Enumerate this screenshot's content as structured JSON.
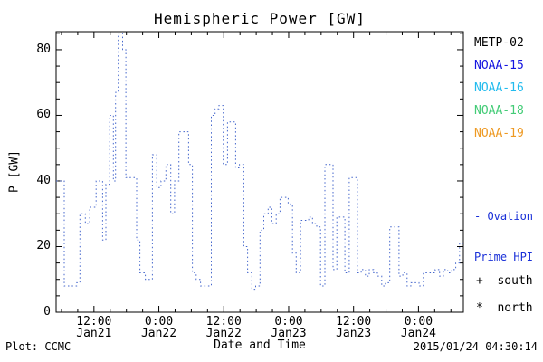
{
  "title": "Hemispheric Power [GW]",
  "axes": {
    "ylabel": "P [GW]",
    "xlabel": "Date and Time"
  },
  "footer": {
    "left": "Plot: CCMC",
    "right": "2015/01/24 04:30:14"
  },
  "legend": {
    "satellites": [
      {
        "label": "METP-02",
        "color": "#000000"
      },
      {
        "label": "NOAA-15",
        "color": "#1515e0"
      },
      {
        "label": "NOAA-16",
        "color": "#22bbee"
      },
      {
        "label": "NOAA-18",
        "color": "#44cc77"
      },
      {
        "label": "NOAA-19",
        "color": "#ee9922"
      }
    ],
    "hpi_label_lines": [
      "- Ovation",
      "Prime HPI"
    ],
    "hpi_color": "#1a30d8",
    "south": "+  south",
    "north": "*  north"
  },
  "chart_data": {
    "type": "line",
    "title": "Hemispheric Power [GW]",
    "xlabel": "Date and Time",
    "ylabel": "P [GW]",
    "line_style": "dotted-step",
    "line_color": "#4466cc",
    "grid": false,
    "ylim": [
      0,
      85.5
    ],
    "yticks": [
      0,
      20,
      40,
      60,
      80
    ],
    "y_minor_step": 5,
    "xlim_hours_from_jan21_00": [
      5.0,
      80.3
    ],
    "x_minor_step_hours": 3,
    "xticks": [
      {
        "hour": 12,
        "time": "12:00",
        "date": "Jan21"
      },
      {
        "hour": 24,
        "time": "0:00",
        "date": "Jan22"
      },
      {
        "hour": 36,
        "time": "12:00",
        "date": "Jan22"
      },
      {
        "hour": 48,
        "time": "0:00",
        "date": "Jan23"
      },
      {
        "hour": 60,
        "time": "12:00",
        "date": "Jan23"
      },
      {
        "hour": 72,
        "time": "0:00",
        "date": "Jan24"
      }
    ],
    "series": [
      {
        "name": "Ovation Prime HPI",
        "units": "GW",
        "points": [
          [
            5.0,
            40
          ],
          [
            6.5,
            8
          ],
          [
            8.8,
            9
          ],
          [
            9.4,
            30
          ],
          [
            10.4,
            27
          ],
          [
            11.2,
            32
          ],
          [
            12.4,
            40
          ],
          [
            13.6,
            22
          ],
          [
            14.2,
            39
          ],
          [
            14.9,
            60
          ],
          [
            15.6,
            40
          ],
          [
            16.0,
            67
          ],
          [
            16.5,
            85
          ],
          [
            17.3,
            80
          ],
          [
            17.9,
            41
          ],
          [
            19.0,
            41
          ],
          [
            19.9,
            22
          ],
          [
            20.5,
            12
          ],
          [
            21.5,
            10
          ],
          [
            22.8,
            48
          ],
          [
            23.6,
            38
          ],
          [
            24.4,
            40
          ],
          [
            25.3,
            45
          ],
          [
            26.2,
            30
          ],
          [
            26.9,
            40
          ],
          [
            27.7,
            55
          ],
          [
            28.7,
            55
          ],
          [
            29.5,
            45
          ],
          [
            30.2,
            12
          ],
          [
            30.9,
            10
          ],
          [
            31.7,
            8
          ],
          [
            32.9,
            8
          ],
          [
            33.7,
            60
          ],
          [
            34.4,
            62
          ],
          [
            35.1,
            63
          ],
          [
            35.9,
            45
          ],
          [
            36.7,
            58
          ],
          [
            37.4,
            58
          ],
          [
            38.2,
            44
          ],
          [
            38.9,
            45
          ],
          [
            39.7,
            20
          ],
          [
            40.4,
            12
          ],
          [
            41.2,
            7
          ],
          [
            41.9,
            8
          ],
          [
            42.7,
            25
          ],
          [
            43.4,
            30
          ],
          [
            44.2,
            32
          ],
          [
            44.9,
            27
          ],
          [
            45.7,
            30
          ],
          [
            46.4,
            35
          ],
          [
            47.2,
            35
          ],
          [
            47.9,
            33
          ],
          [
            48.7,
            18
          ],
          [
            49.4,
            12
          ],
          [
            50.2,
            28
          ],
          [
            50.9,
            28
          ],
          [
            51.7,
            29
          ],
          [
            52.4,
            27
          ],
          [
            53.2,
            26
          ],
          [
            53.9,
            8
          ],
          [
            54.7,
            45
          ],
          [
            55.4,
            45
          ],
          [
            56.2,
            13
          ],
          [
            56.9,
            29
          ],
          [
            57.7,
            29
          ],
          [
            58.4,
            12
          ],
          [
            59.2,
            41
          ],
          [
            59.9,
            41
          ],
          [
            60.7,
            12
          ],
          [
            61.4,
            13
          ],
          [
            62.2,
            11
          ],
          [
            62.9,
            13
          ],
          [
            63.7,
            12
          ],
          [
            64.4,
            11
          ],
          [
            65.2,
            8
          ],
          [
            65.9,
            9
          ],
          [
            66.7,
            26
          ],
          [
            67.6,
            26
          ],
          [
            68.4,
            11
          ],
          [
            69.1,
            12
          ],
          [
            69.9,
            8
          ],
          [
            70.6,
            9
          ],
          [
            71.4,
            9
          ],
          [
            72.1,
            8
          ],
          [
            72.9,
            12
          ],
          [
            73.6,
            12
          ],
          [
            74.4,
            12
          ],
          [
            75.1,
            13
          ],
          [
            75.9,
            11
          ],
          [
            76.6,
            13
          ],
          [
            77.4,
            12
          ],
          [
            78.1,
            13
          ],
          [
            78.9,
            15
          ],
          [
            79.6,
            21
          ]
        ]
      }
    ]
  }
}
